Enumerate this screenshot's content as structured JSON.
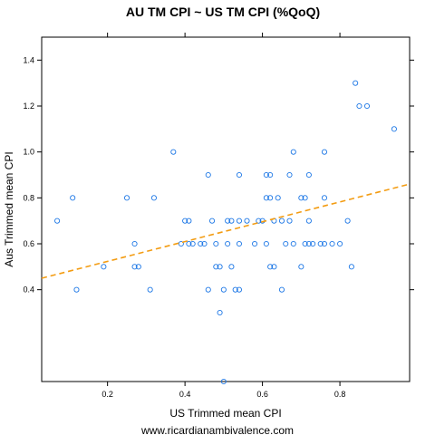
{
  "chart_data": {
    "type": "scatter",
    "title": "AU TM CPI ~ US TM CPI (%QoQ)",
    "xlabel": "US Trimmed mean CPI",
    "ylabel": "Aus Trimmed mean CPI",
    "footer": "www.ricardianambivalence.com",
    "xlim": [
      0.03,
      0.98
    ],
    "ylim": [
      0.0,
      1.5
    ],
    "x_ticks": [
      0.2,
      0.4,
      0.6,
      0.8
    ],
    "y_ticks": [
      0.4,
      0.6,
      0.8,
      1.0,
      1.2,
      1.4
    ],
    "x_tick_labels": [
      "0.2",
      "0.4",
      "0.6",
      "0.8"
    ],
    "y_tick_labels": [
      "0.4",
      "0.6",
      "0.8",
      "1.0",
      "1.2",
      "1.4"
    ],
    "grid": false,
    "point_color": "#1E78E6",
    "trend_color": "#F39C12",
    "points": [
      {
        "x": 0.07,
        "y": 0.7
      },
      {
        "x": 0.11,
        "y": 0.8
      },
      {
        "x": 0.12,
        "y": 0.4
      },
      {
        "x": 0.19,
        "y": 0.5
      },
      {
        "x": 0.25,
        "y": 0.8
      },
      {
        "x": 0.27,
        "y": 0.6
      },
      {
        "x": 0.27,
        "y": 0.5
      },
      {
        "x": 0.28,
        "y": 0.5
      },
      {
        "x": 0.31,
        "y": 0.4
      },
      {
        "x": 0.32,
        "y": 0.8
      },
      {
        "x": 0.37,
        "y": 1.0
      },
      {
        "x": 0.39,
        "y": 0.6
      },
      {
        "x": 0.4,
        "y": 0.7
      },
      {
        "x": 0.41,
        "y": 0.7
      },
      {
        "x": 0.41,
        "y": 0.6
      },
      {
        "x": 0.42,
        "y": 0.6
      },
      {
        "x": 0.44,
        "y": 0.6
      },
      {
        "x": 0.45,
        "y": 0.6
      },
      {
        "x": 0.46,
        "y": 0.9
      },
      {
        "x": 0.46,
        "y": 0.4
      },
      {
        "x": 0.47,
        "y": 0.7
      },
      {
        "x": 0.48,
        "y": 0.6
      },
      {
        "x": 0.48,
        "y": 0.5
      },
      {
        "x": 0.49,
        "y": 0.5
      },
      {
        "x": 0.49,
        "y": 0.3
      },
      {
        "x": 0.5,
        "y": 0.4
      },
      {
        "x": 0.5,
        "y": 0.0
      },
      {
        "x": 0.51,
        "y": 0.7
      },
      {
        "x": 0.51,
        "y": 0.6
      },
      {
        "x": 0.52,
        "y": 0.7
      },
      {
        "x": 0.52,
        "y": 0.5
      },
      {
        "x": 0.53,
        "y": 0.4
      },
      {
        "x": 0.54,
        "y": 0.9
      },
      {
        "x": 0.54,
        "y": 0.7
      },
      {
        "x": 0.54,
        "y": 0.6
      },
      {
        "x": 0.54,
        "y": 0.4
      },
      {
        "x": 0.56,
        "y": 0.7
      },
      {
        "x": 0.58,
        "y": 0.6
      },
      {
        "x": 0.59,
        "y": 0.7
      },
      {
        "x": 0.6,
        "y": 0.7
      },
      {
        "x": 0.61,
        "y": 0.9
      },
      {
        "x": 0.61,
        "y": 0.8
      },
      {
        "x": 0.61,
        "y": 0.6
      },
      {
        "x": 0.62,
        "y": 0.9
      },
      {
        "x": 0.62,
        "y": 0.8
      },
      {
        "x": 0.62,
        "y": 0.5
      },
      {
        "x": 0.63,
        "y": 0.7
      },
      {
        "x": 0.63,
        "y": 0.5
      },
      {
        "x": 0.64,
        "y": 0.8
      },
      {
        "x": 0.65,
        "y": 0.7
      },
      {
        "x": 0.65,
        "y": 0.4
      },
      {
        "x": 0.66,
        "y": 0.6
      },
      {
        "x": 0.67,
        "y": 0.9
      },
      {
        "x": 0.67,
        "y": 0.7
      },
      {
        "x": 0.68,
        "y": 1.0
      },
      {
        "x": 0.68,
        "y": 0.6
      },
      {
        "x": 0.7,
        "y": 0.8
      },
      {
        "x": 0.7,
        "y": 0.5
      },
      {
        "x": 0.71,
        "y": 0.6
      },
      {
        "x": 0.71,
        "y": 0.8
      },
      {
        "x": 0.72,
        "y": 0.9
      },
      {
        "x": 0.72,
        "y": 0.7
      },
      {
        "x": 0.72,
        "y": 0.6
      },
      {
        "x": 0.73,
        "y": 0.6
      },
      {
        "x": 0.75,
        "y": 0.6
      },
      {
        "x": 0.76,
        "y": 1.0
      },
      {
        "x": 0.76,
        "y": 0.8
      },
      {
        "x": 0.76,
        "y": 0.6
      },
      {
        "x": 0.78,
        "y": 0.6
      },
      {
        "x": 0.8,
        "y": 0.6
      },
      {
        "x": 0.82,
        "y": 0.7
      },
      {
        "x": 0.83,
        "y": 0.5
      },
      {
        "x": 0.84,
        "y": 1.3
      },
      {
        "x": 0.85,
        "y": 1.2
      },
      {
        "x": 0.87,
        "y": 1.2
      },
      {
        "x": 0.94,
        "y": 1.1
      }
    ],
    "trend_line": {
      "x": [
        0.03,
        0.98
      ],
      "y": [
        0.45,
        0.86
      ]
    }
  }
}
